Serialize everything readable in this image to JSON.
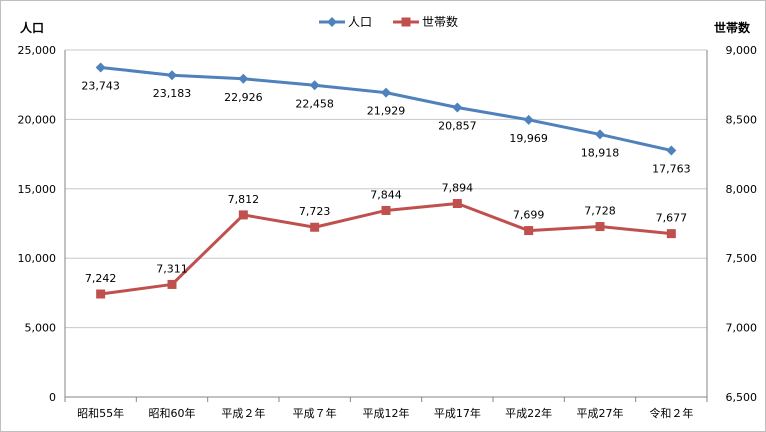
{
  "chart_data": {
    "type": "line",
    "categories": [
      "昭和55年",
      "昭和60年",
      "平成２年",
      "平成７年",
      "平成12年",
      "平成17年",
      "平成22年",
      "平成27年",
      "令和２年"
    ],
    "ylabel_left": "人口",
    "ylabel_right": "世帯数",
    "y_left": {
      "min": 0,
      "max": 25000,
      "step": 5000,
      "tick_labels": [
        "0",
        "5,000",
        "10,000",
        "15,000",
        "20,000",
        "25,000"
      ]
    },
    "y_right": {
      "min": 6500,
      "max": 9000,
      "step": 500,
      "tick_labels": [
        "6,500",
        "7,000",
        "7,500",
        "8,000",
        "8,500",
        "9,000"
      ]
    },
    "grid": "horizontal",
    "legend": "top-center",
    "series": [
      {
        "name": "人口",
        "axis": "left",
        "color": "#4f81bd",
        "marker": "diamond",
        "values": [
          23743,
          23183,
          22926,
          22458,
          21929,
          20857,
          19969,
          18918,
          17763
        ],
        "labels": [
          "23,743",
          "23,183",
          "22,926",
          "22,458",
          "21,929",
          "20,857",
          "19,969",
          "18,918",
          "17,763"
        ]
      },
      {
        "name": "世帯数",
        "axis": "right",
        "color": "#c0504d",
        "marker": "square",
        "values": [
          7242,
          7311,
          7812,
          7723,
          7844,
          7894,
          7699,
          7728,
          7677
        ],
        "labels": [
          "7,242",
          "7,311",
          "7,812",
          "7,723",
          "7,844",
          "7,894",
          "7,699",
          "7,728",
          "7,677"
        ]
      }
    ]
  }
}
